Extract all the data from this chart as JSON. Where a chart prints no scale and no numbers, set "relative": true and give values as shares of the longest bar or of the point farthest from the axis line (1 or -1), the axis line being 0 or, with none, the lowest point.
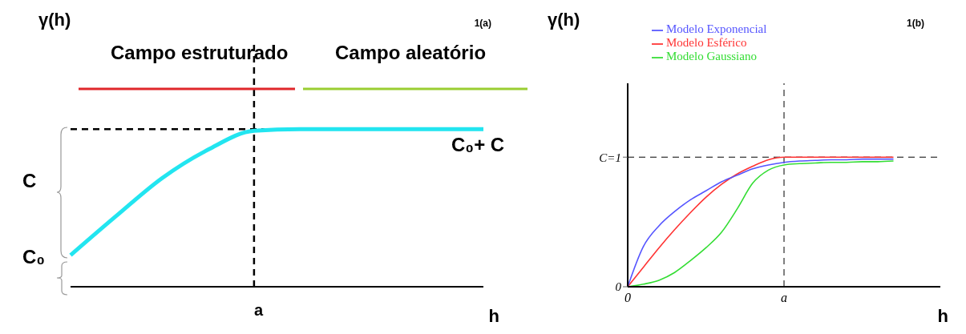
{
  "chart_data": [
    {
      "type": "line",
      "title": "1(a)",
      "ylabel": "γ(h)",
      "xlabel": "h",
      "relative": true,
      "marker": "none",
      "line_style": "solid",
      "grid": false,
      "legend": false,
      "categories": [
        null,
        null,
        null,
        null,
        null,
        null,
        null,
        null,
        null,
        null
      ],
      "series": [
        {
          "color": "#22e5f0",
          "values": [
            0.2,
            0.45,
            0.69,
            0.87,
            0.99,
            1.0,
            1.0,
            1.0,
            1.0,
            1.0
          ]
        }
      ],
      "annotations": [
        "Campo estruturado",
        "Campo aleatório",
        "C₀+ C",
        "C",
        "C₀",
        "a"
      ]
    },
    {
      "type": "line",
      "title": "1(b)",
      "ylabel": "γ(h)",
      "xlabel": "h",
      "marker": "none",
      "line_style": "solid",
      "grid": false,
      "legend": "top",
      "categories": [
        "0",
        null,
        null,
        null,
        null,
        null,
        null,
        null,
        null,
        null,
        "a",
        null,
        null,
        null,
        null,
        null,
        null,
        null,
        null,
        null,
        null
      ],
      "ylim": [
        0,
        1.57
      ],
      "yticks": [
        0,
        {
          "value": 1,
          "label": "C=1"
        }
      ],
      "series": [
        {
          "name": "Modelo Exponencial",
          "color": "#5555ff",
          "values": [
            0,
            0.31,
            0.47,
            0.58,
            0.67,
            0.74,
            0.81,
            0.86,
            0.91,
            0.94,
            0.96,
            0.97,
            0.975,
            0.98,
            0.98,
            0.985,
            0.985,
            0.985,
            null,
            null,
            null
          ]
        },
        {
          "name": "Modelo Esférico",
          "color": "#ff3333",
          "values": [
            0,
            0.15,
            0.3,
            0.44,
            0.57,
            0.69,
            0.79,
            0.87,
            0.93,
            0.98,
            1.0,
            1.0,
            1.0,
            1.0,
            1.0,
            1.0,
            1.0,
            1.0,
            null,
            null,
            null
          ]
        },
        {
          "name": "Modelo Gaussiano",
          "color": "#33dd33",
          "values": [
            0,
            0.02,
            0.05,
            0.11,
            0.2,
            0.3,
            0.42,
            0.6,
            0.8,
            0.9,
            0.94,
            0.95,
            0.955,
            0.96,
            0.96,
            0.965,
            0.965,
            0.97,
            null,
            null,
            null
          ]
        }
      ],
      "ref_lines": [
        {
          "axis": "y",
          "value": 1,
          "line_style": "dashed",
          "color": "#000000"
        },
        {
          "axis": "x",
          "value": "a",
          "line_style": "dashed",
          "color": "#000000"
        }
      ]
    }
  ]
}
